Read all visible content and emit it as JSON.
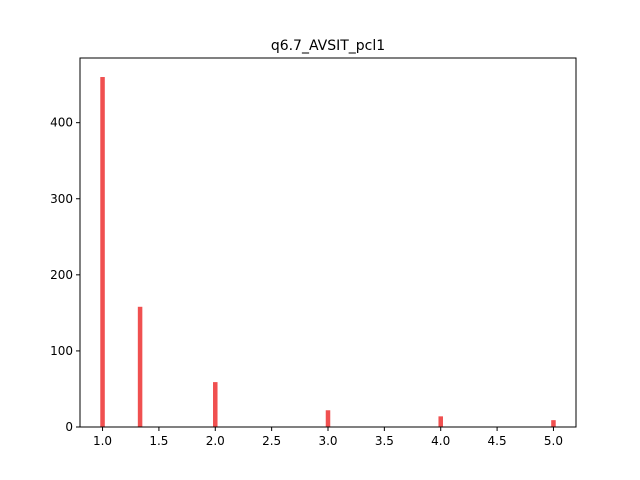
{
  "chart_data": {
    "type": "bar",
    "title": "q6.7_AVSIT_pcl1",
    "xlabel": "",
    "ylabel": "",
    "color": "#f05050",
    "xlim": [
      0.8,
      5.2
    ],
    "ylim": [
      0,
      485
    ],
    "xticks": [
      "1.0",
      "1.5",
      "2.0",
      "2.5",
      "3.0",
      "3.5",
      "4.0",
      "4.5",
      "5.0"
    ],
    "yticks": [
      "0",
      "100",
      "200",
      "300",
      "400"
    ],
    "grid": false,
    "legend": "none",
    "bars": [
      {
        "x": 1.0,
        "value": 460
      },
      {
        "x": 1.333,
        "value": 158
      },
      {
        "x": 2.0,
        "value": 59
      },
      {
        "x": 3.0,
        "value": 22
      },
      {
        "x": 4.0,
        "value": 14
      },
      {
        "x": 5.0,
        "value": 9
      }
    ],
    "bar_width": 0.04
  }
}
